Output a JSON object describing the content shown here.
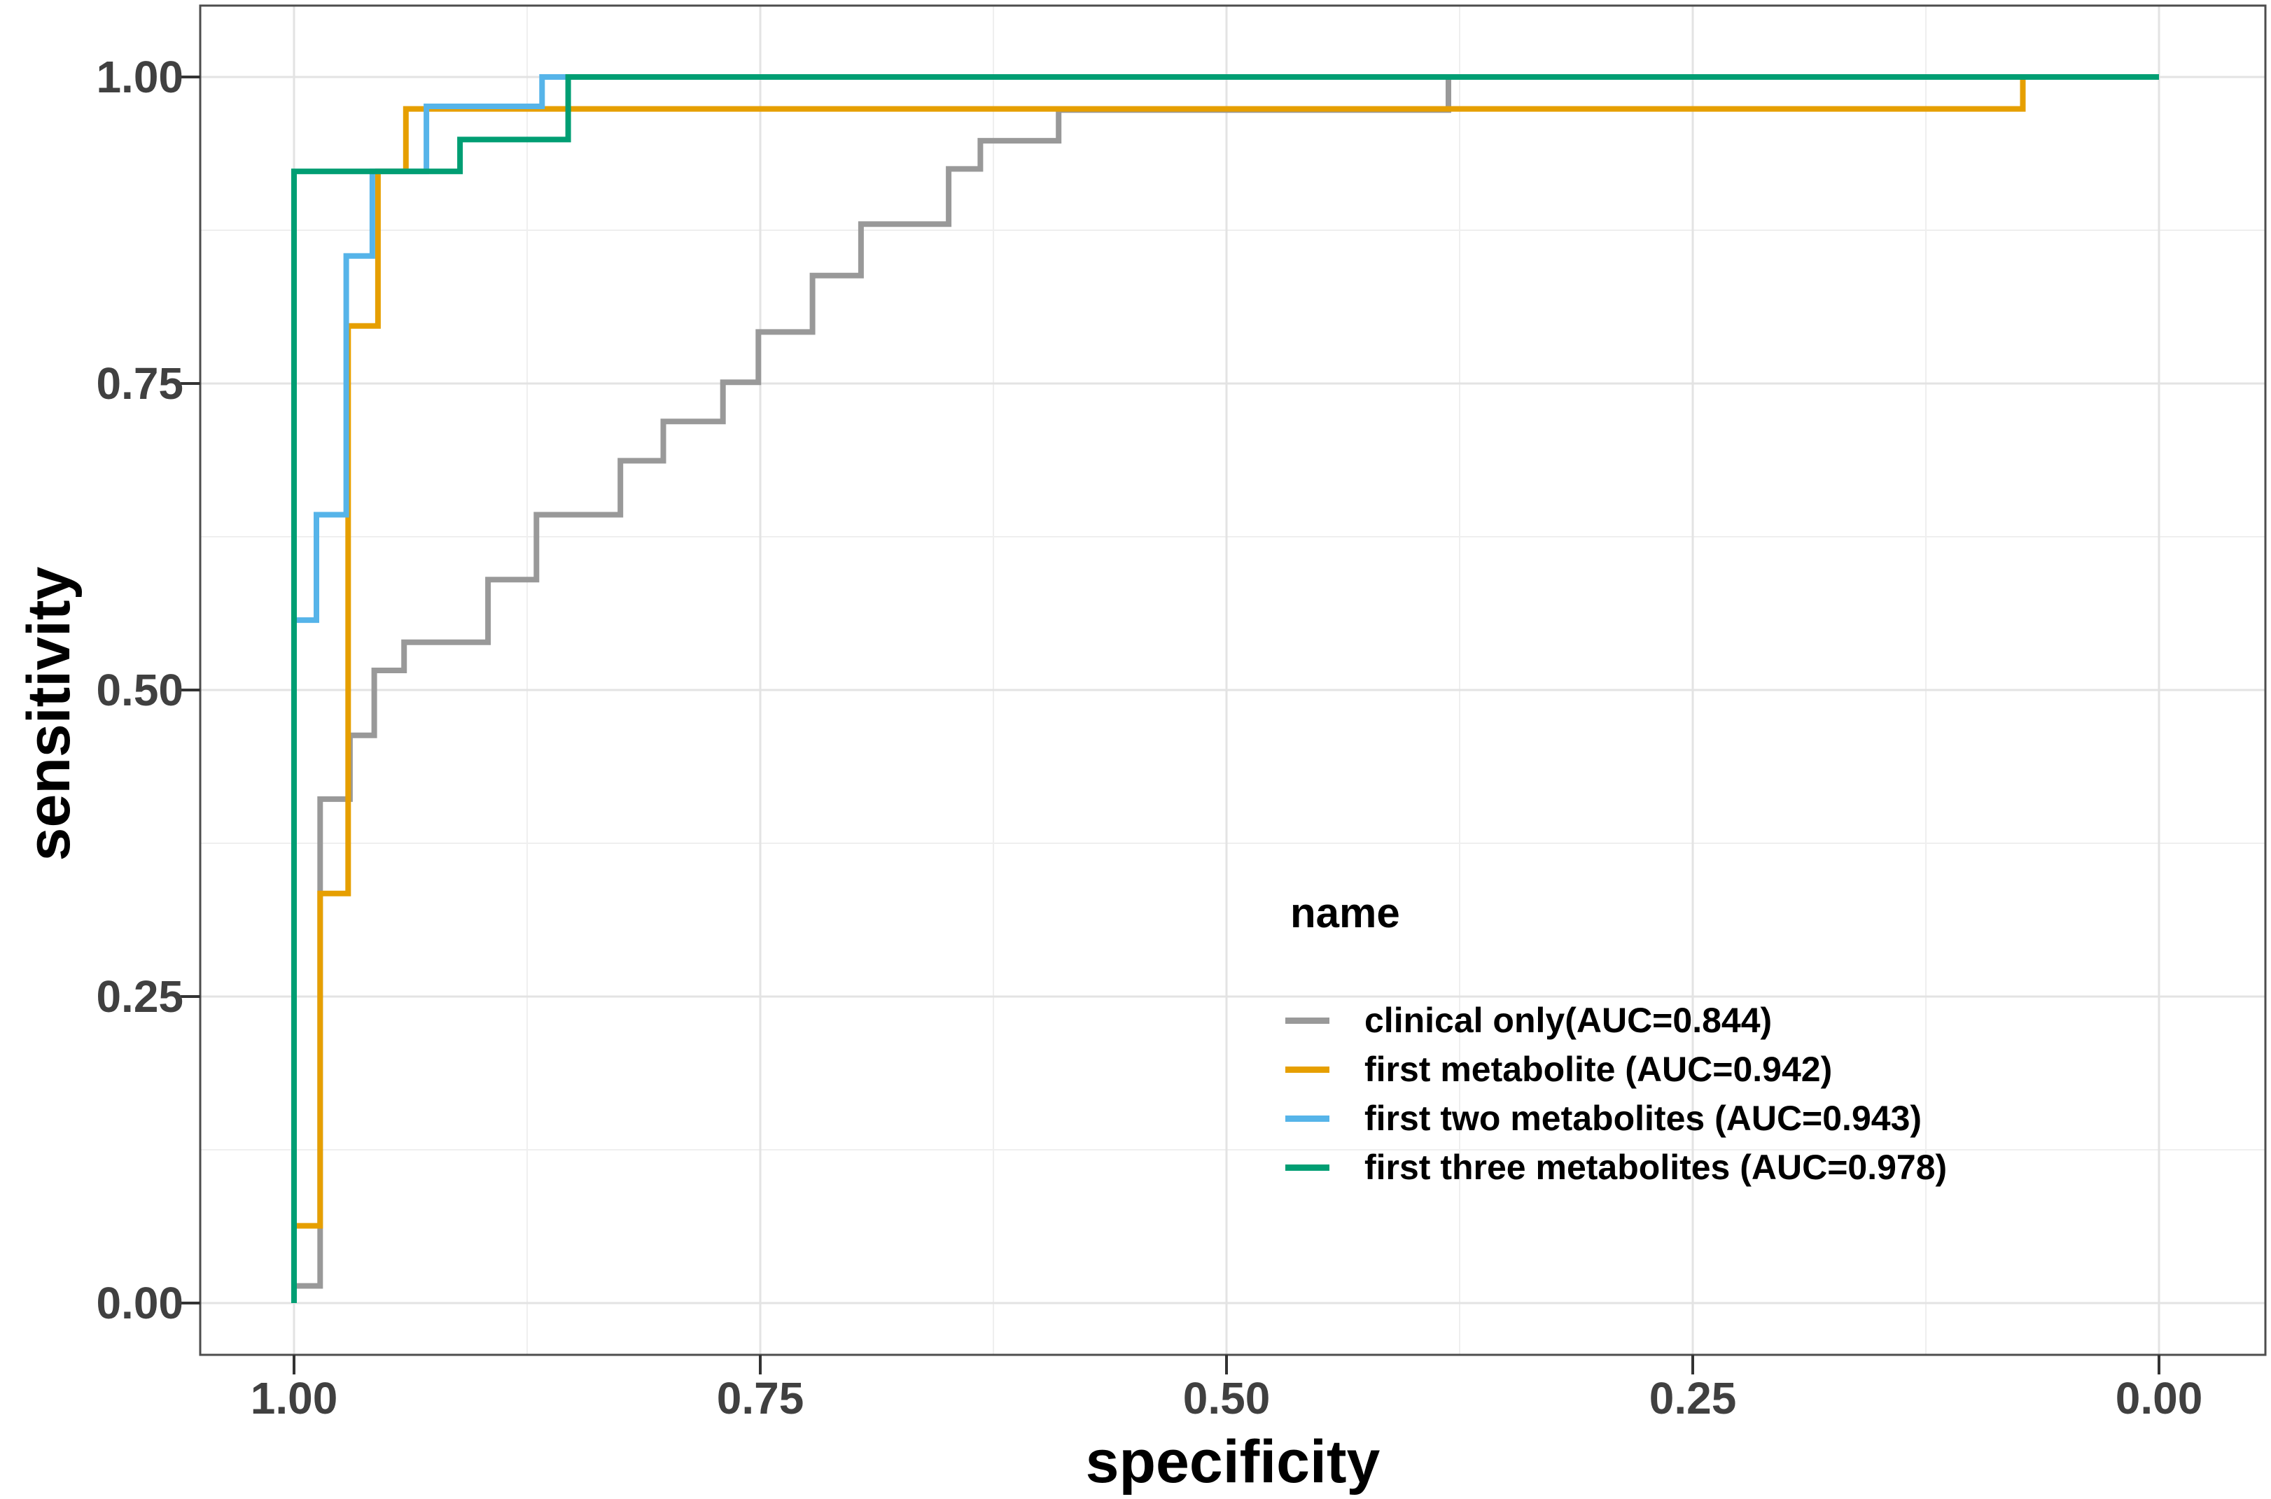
{
  "figure": {
    "background": "#FFFFFF"
  },
  "axes": {
    "x": {
      "title": "specificity",
      "reversed": true,
      "range": [
        1.0,
        0.0
      ],
      "tick_labels": [
        "1.00",
        "0.75",
        "0.50",
        "0.25",
        "0.00"
      ],
      "tick_values": [
        1.0,
        0.75,
        0.5,
        0.25,
        0.0
      ]
    },
    "y": {
      "title": "sensitivity",
      "range": [
        0.0,
        1.0
      ],
      "tick_labels": [
        "0.00",
        "0.25",
        "0.50",
        "0.75",
        "1.00"
      ],
      "tick_values": [
        0.0,
        0.25,
        0.5,
        0.75,
        1.0
      ]
    }
  },
  "legend": {
    "title": "name",
    "position": "inside-right-lower",
    "items": [
      {
        "label": "clinical only(AUC=0.844)",
        "color": "#999999"
      },
      {
        "label": "first metabolite (AUC=0.942)",
        "color": "#E69F00"
      },
      {
        "label": "first two metabolites (AUC=0.943)",
        "color": "#56B4E9"
      },
      {
        "label": "first three metabolites (AUC=0.978)",
        "color": "#009E73"
      }
    ]
  },
  "style_colors": {
    "grid_major": "#E3E3E3",
    "grid_minor": "#EFEFEF",
    "panel_border": "#4D4D4D",
    "tick_mark": "#333333",
    "tick_text": "#404040"
  },
  "chart_data": {
    "type": "line",
    "subtype": "roc_step_curves",
    "title": "",
    "xlabel": "specificity",
    "ylabel": "sensitivity",
    "xlim_display": [
      1.0,
      0.0
    ],
    "ylim": [
      0.0,
      1.0
    ],
    "grid": true,
    "legend_position": "inside right",
    "series": [
      {
        "name": "clinical only(AUC=0.844)",
        "auc": 0.844,
        "color": "#999999",
        "points": [
          [
            1.0,
            0.0
          ],
          [
            1.0,
            0.014
          ],
          [
            0.986,
            0.014
          ],
          [
            0.986,
            0.411
          ],
          [
            0.97,
            0.411
          ],
          [
            0.97,
            0.463
          ],
          [
            0.957,
            0.463
          ],
          [
            0.957,
            0.516
          ],
          [
            0.941,
            0.516
          ],
          [
            0.941,
            0.539
          ],
          [
            0.896,
            0.539
          ],
          [
            0.896,
            0.59
          ],
          [
            0.87,
            0.59
          ],
          [
            0.87,
            0.643
          ],
          [
            0.825,
            0.643
          ],
          [
            0.825,
            0.687
          ],
          [
            0.802,
            0.687
          ],
          [
            0.802,
            0.719
          ],
          [
            0.77,
            0.719
          ],
          [
            0.77,
            0.751
          ],
          [
            0.751,
            0.751
          ],
          [
            0.751,
            0.792
          ],
          [
            0.722,
            0.792
          ],
          [
            0.722,
            0.838
          ],
          [
            0.696,
            0.838
          ],
          [
            0.696,
            0.88
          ],
          [
            0.649,
            0.88
          ],
          [
            0.649,
            0.925
          ],
          [
            0.632,
            0.925
          ],
          [
            0.632,
            0.948
          ],
          [
            0.59,
            0.948
          ],
          [
            0.59,
            0.973
          ],
          [
            0.381,
            0.973
          ],
          [
            0.381,
            1.0
          ],
          [
            0.0,
            1.0
          ]
        ]
      },
      {
        "name": "first metabolite (AUC=0.942)",
        "auc": 0.942,
        "color": "#E69F00",
        "points": [
          [
            1.0,
            0.0
          ],
          [
            1.0,
            0.063
          ],
          [
            0.986,
            0.063
          ],
          [
            0.986,
            0.334
          ],
          [
            0.971,
            0.334
          ],
          [
            0.971,
            0.797
          ],
          [
            0.955,
            0.797
          ],
          [
            0.955,
            0.923
          ],
          [
            0.94,
            0.923
          ],
          [
            0.94,
            0.974
          ],
          [
            0.073,
            0.974
          ],
          [
            0.073,
            1.0
          ],
          [
            0.0,
            1.0
          ]
        ]
      },
      {
        "name": "first two metabolites (AUC=0.943)",
        "auc": 0.943,
        "color": "#56B4E9",
        "points": [
          [
            1.0,
            0.0
          ],
          [
            1.0,
            0.557
          ],
          [
            0.988,
            0.557
          ],
          [
            0.988,
            0.643
          ],
          [
            0.972,
            0.643
          ],
          [
            0.972,
            0.854
          ],
          [
            0.958,
            0.854
          ],
          [
            0.958,
            0.923
          ],
          [
            0.929,
            0.923
          ],
          [
            0.929,
            0.976
          ],
          [
            0.867,
            0.976
          ],
          [
            0.867,
            1.0
          ],
          [
            0.0,
            1.0
          ]
        ]
      },
      {
        "name": "first three metabolites (AUC=0.978)",
        "auc": 0.978,
        "color": "#009E73",
        "points": [
          [
            1.0,
            0.0
          ],
          [
            1.0,
            0.923
          ],
          [
            0.911,
            0.923
          ],
          [
            0.911,
            0.949
          ],
          [
            0.853,
            0.949
          ],
          [
            0.853,
            1.0
          ],
          [
            0.0,
            1.0
          ]
        ]
      }
    ]
  }
}
